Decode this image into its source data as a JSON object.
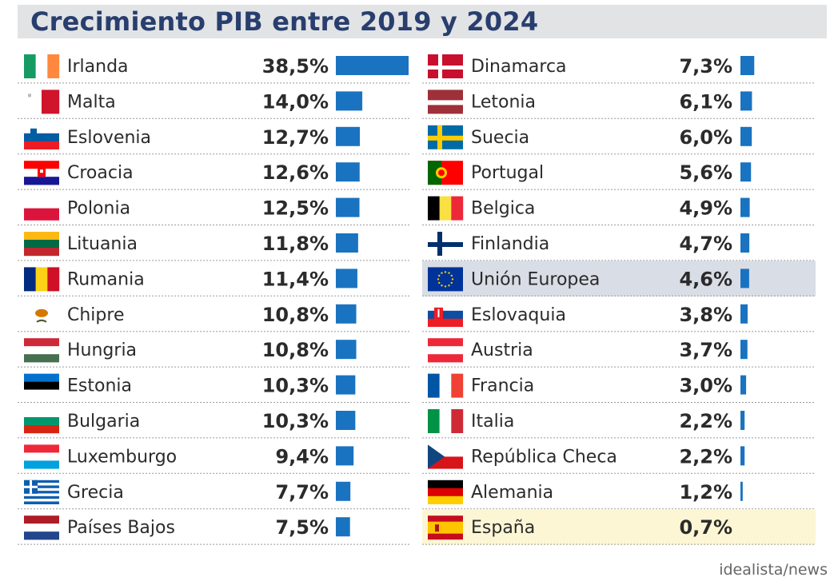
{
  "title": "Crecimiento PIB entre 2019 y 2024",
  "source": "idealista/news",
  "colors": {
    "bar": "#1a73c0",
    "title": "#283e6e",
    "title_bg": "#e2e3e5",
    "highlight_eu": "#d9dde6",
    "highlight_spain": "#fdf6d4",
    "divider": "#9a9a9a"
  },
  "chart_data": {
    "type": "bar",
    "orientation": "horizontal",
    "title": "Crecimiento PIB entre 2019 y 2024",
    "unit": "%",
    "xlim": [
      0,
      38.5
    ],
    "grid": false,
    "legend": "none",
    "columns": [
      {
        "rows": [
          {
            "country": "Irlanda",
            "value": 38.5,
            "label": "38,5%",
            "flag": "flag-ireland",
            "highlight": ""
          },
          {
            "country": "Malta",
            "value": 14.0,
            "label": "14,0%",
            "flag": "flag-malta",
            "highlight": ""
          },
          {
            "country": "Eslovenia",
            "value": 12.7,
            "label": "12,7%",
            "flag": "flag-slovenia",
            "highlight": ""
          },
          {
            "country": "Croacia",
            "value": 12.6,
            "label": "12,6%",
            "flag": "flag-croatia",
            "highlight": ""
          },
          {
            "country": "Polonia",
            "value": 12.5,
            "label": "12,5%",
            "flag": "flag-poland",
            "highlight": ""
          },
          {
            "country": "Lituania",
            "value": 11.8,
            "label": "11,8%",
            "flag": "flag-lithuania",
            "highlight": ""
          },
          {
            "country": "Rumania",
            "value": 11.4,
            "label": "11,4%",
            "flag": "flag-romania",
            "highlight": ""
          },
          {
            "country": "Chipre",
            "value": 10.8,
            "label": "10,8%",
            "flag": "flag-cyprus",
            "highlight": ""
          },
          {
            "country": "Hungria",
            "value": 10.8,
            "label": "10,8%",
            "flag": "flag-hungary",
            "highlight": ""
          },
          {
            "country": "Estonia",
            "value": 10.3,
            "label": "10,3%",
            "flag": "flag-estonia",
            "highlight": ""
          },
          {
            "country": "Bulgaria",
            "value": 10.3,
            "label": "10,3%",
            "flag": "flag-bulgaria",
            "highlight": ""
          },
          {
            "country": "Luxemburgo",
            "value": 9.4,
            "label": "9,4%",
            "flag": "flag-luxembourg",
            "highlight": ""
          },
          {
            "country": "Grecia",
            "value": 7.7,
            "label": "7,7%",
            "flag": "flag-greece",
            "highlight": ""
          },
          {
            "country": "Países Bajos",
            "value": 7.5,
            "label": "7,5%",
            "flag": "flag-netherlands",
            "highlight": ""
          }
        ]
      },
      {
        "rows": [
          {
            "country": "Dinamarca",
            "value": 7.3,
            "label": "7,3%",
            "flag": "flag-denmark",
            "highlight": ""
          },
          {
            "country": "Letonia",
            "value": 6.1,
            "label": "6,1%",
            "flag": "flag-latvia",
            "highlight": ""
          },
          {
            "country": "Suecia",
            "value": 6.0,
            "label": "6,0%",
            "flag": "flag-sweden",
            "highlight": ""
          },
          {
            "country": "Portugal",
            "value": 5.6,
            "label": "5,6%",
            "flag": "flag-portugal",
            "highlight": ""
          },
          {
            "country": "Belgica",
            "value": 4.9,
            "label": "4,9%",
            "flag": "flag-belgium",
            "highlight": ""
          },
          {
            "country": "Finlandia",
            "value": 4.7,
            "label": "4,7%",
            "flag": "flag-finland",
            "highlight": ""
          },
          {
            "country": "Unión Europea",
            "value": 4.6,
            "label": "4,6%",
            "flag": "flag-eu",
            "highlight": "eu"
          },
          {
            "country": "Eslovaquia",
            "value": 3.8,
            "label": "3,8%",
            "flag": "flag-slovakia",
            "highlight": ""
          },
          {
            "country": "Austria",
            "value": 3.7,
            "label": "3,7%",
            "flag": "flag-austria",
            "highlight": ""
          },
          {
            "country": "Francia",
            "value": 3.0,
            "label": "3,0%",
            "flag": "flag-france",
            "highlight": ""
          },
          {
            "country": "Italia",
            "value": 2.2,
            "label": "2,2%",
            "flag": "flag-italy",
            "highlight": ""
          },
          {
            "country": "República Checa",
            "value": 2.2,
            "label": "2,2%",
            "flag": "flag-czechia",
            "highlight": ""
          },
          {
            "country": "Alemania",
            "value": 1.2,
            "label": "1,2%",
            "flag": "flag-germany",
            "highlight": ""
          },
          {
            "country": "España",
            "value": 0.7,
            "label": "0,7%",
            "flag": "flag-spain",
            "highlight": "spain"
          }
        ]
      }
    ]
  }
}
